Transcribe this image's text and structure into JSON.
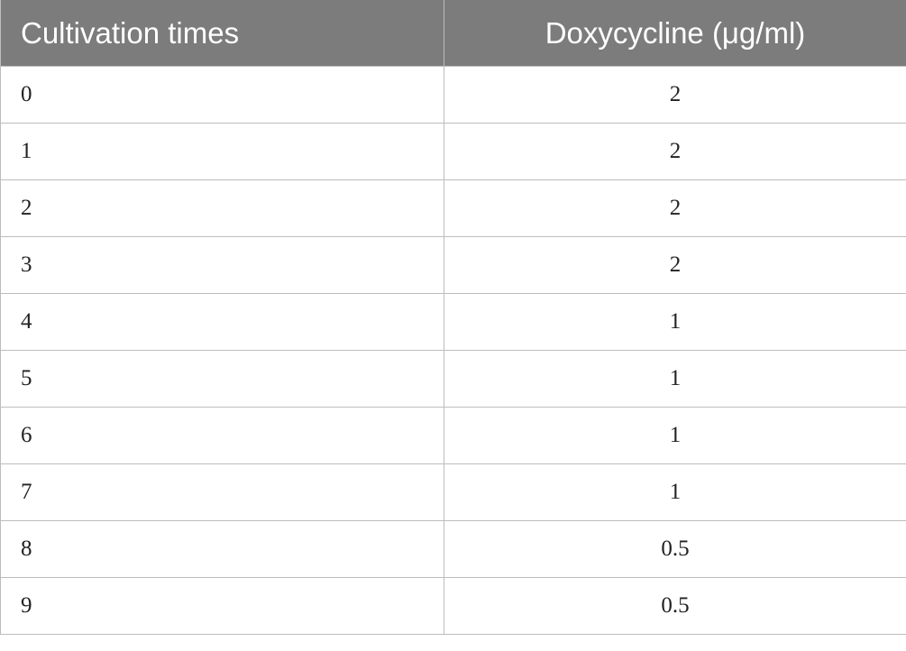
{
  "table": {
    "headers": [
      "Cultivation times",
      "Doxycycline (μg/ml)"
    ],
    "rows": [
      [
        "0",
        "2"
      ],
      [
        "1",
        "2"
      ],
      [
        "2",
        "2"
      ],
      [
        "3",
        "2"
      ],
      [
        "4",
        "1"
      ],
      [
        "5",
        "1"
      ],
      [
        "6",
        "1"
      ],
      [
        "7",
        "1"
      ],
      [
        "8",
        "0.5"
      ],
      [
        "9",
        "0.5"
      ]
    ]
  },
  "colors": {
    "header_background": "#7b7c7b",
    "header_text": "#ffffff",
    "grid_lines": "#bdbdbd",
    "body_text": "#222222"
  }
}
